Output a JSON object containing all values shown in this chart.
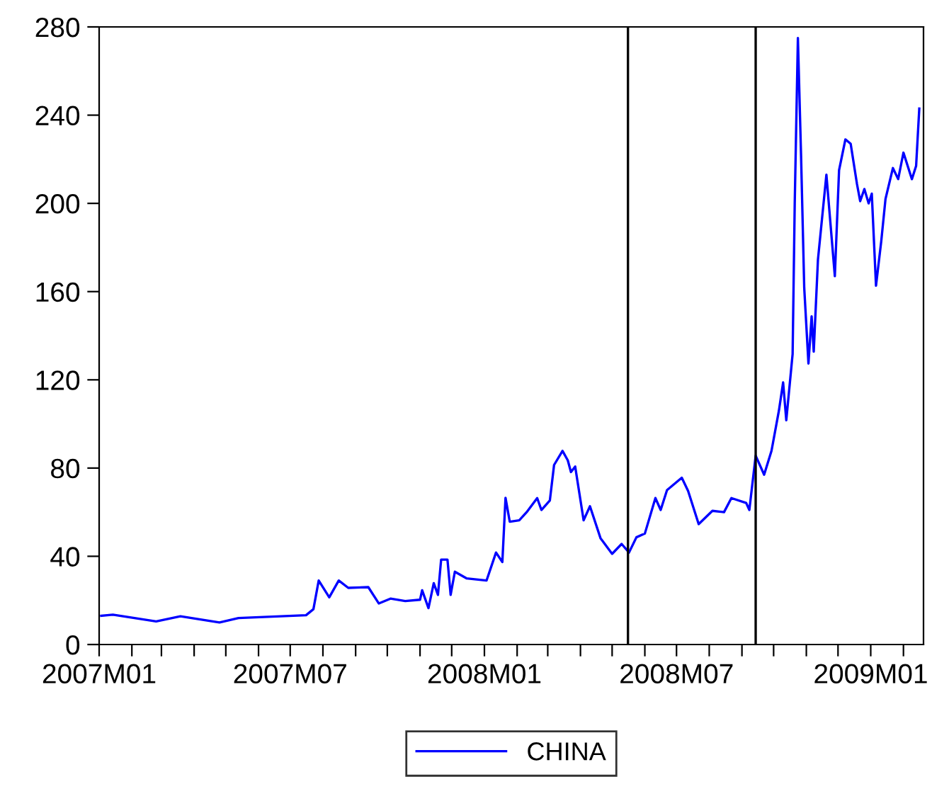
{
  "chart_data": {
    "type": "line",
    "x": [
      "2007-01-03",
      "2007-01-14",
      "2007-02-24",
      "2007-03-19",
      "2007-04-25",
      "2007-05-13",
      "2007-07-16",
      "2007-07-23",
      "2007-07-28",
      "2007-08-07",
      "2007-08-16",
      "2007-08-25",
      "2007-09-13",
      "2007-09-23",
      "2007-10-04",
      "2007-10-18",
      "2007-11-01",
      "2007-11-03",
      "2007-11-09",
      "2007-11-14",
      "2007-11-18",
      "2007-11-21",
      "2007-11-27",
      "2007-11-30",
      "2007-12-04",
      "2007-12-15",
      "2008-01-03",
      "2008-01-12",
      "2008-01-18",
      "2008-01-21",
      "2008-01-25",
      "2008-02-03",
      "2008-02-10",
      "2008-02-20",
      "2008-02-24",
      "2008-03-03",
      "2008-03-07",
      "2008-03-15",
      "2008-03-20",
      "2008-03-23",
      "2008-03-27",
      "2008-04-04",
      "2008-04-10",
      "2008-04-20",
      "2008-05-01",
      "2008-05-10",
      "2008-05-17",
      "2008-05-24",
      "2008-06-01",
      "2008-06-11",
      "2008-06-16",
      "2008-06-22",
      "2008-07-06",
      "2008-07-12",
      "2008-07-22",
      "2008-08-04",
      "2008-08-15",
      "2008-08-22",
      "2008-09-05",
      "2008-09-08",
      "2008-09-14",
      "2008-09-22",
      "2008-09-29",
      "2008-10-06",
      "2008-10-10",
      "2008-10-13",
      "2008-10-19",
      "2008-10-21",
      "2008-10-24",
      "2008-10-27",
      "2008-10-30",
      "2008-11-03",
      "2008-11-06",
      "2008-11-08",
      "2008-11-12",
      "2008-11-20",
      "2008-11-28",
      "2008-12-02",
      "2008-12-08",
      "2008-12-13",
      "2008-12-19",
      "2008-12-22",
      "2008-12-26",
      "2008-12-30",
      "2009-01-02",
      "2009-01-06",
      "2009-01-11",
      "2009-01-15",
      "2009-01-22",
      "2009-01-27",
      "2009-02-01",
      "2009-02-09",
      "2009-02-13",
      "2009-02-16"
    ],
    "series": [
      {
        "name": "CHINA",
        "color": "#0000ff",
        "values": [
          13,
          13.5,
          10.5,
          12.8,
          10,
          12,
          13.3,
          16,
          29,
          21.4,
          29,
          25.7,
          26,
          18.6,
          20.8,
          19.7,
          20.3,
          24.6,
          16.5,
          27.8,
          22.5,
          38.5,
          38.5,
          22.5,
          33,
          30,
          29,
          41.7,
          37.4,
          66.5,
          55.7,
          56.3,
          60,
          66.4,
          61,
          65.3,
          81.4,
          87.8,
          83.5,
          78.2,
          80.7,
          56.3,
          62.7,
          48.2,
          41.1,
          45.6,
          41.7,
          48.6,
          50.3,
          66.4,
          61,
          70,
          75.6,
          69.6,
          54.6,
          60.6,
          60,
          66.4,
          64.2,
          61,
          85.6,
          77,
          87.8,
          106,
          118.8,
          101.7,
          131.7,
          200,
          275,
          221.6,
          161.7,
          127.4,
          148.8,
          132.8,
          174.5,
          213,
          167,
          215,
          229,
          227,
          208.7,
          201,
          206.5,
          200,
          204.4,
          162.7,
          183,
          202,
          216,
          211,
          223,
          211,
          217,
          243
        ]
      }
    ],
    "xlim": [
      "2007-01-01",
      "2009-02-20"
    ],
    "xticks": [
      {
        "value": "2007-01-01",
        "label": "2007M01"
      },
      {
        "value": "2007-02-01",
        "label": null
      },
      {
        "value": "2007-03-01",
        "label": null
      },
      {
        "value": "2007-04-01",
        "label": null
      },
      {
        "value": "2007-05-01",
        "label": null
      },
      {
        "value": "2007-06-01",
        "label": null
      },
      {
        "value": "2007-07-01",
        "label": "2007M07"
      },
      {
        "value": "2007-08-01",
        "label": null
      },
      {
        "value": "2007-09-01",
        "label": null
      },
      {
        "value": "2007-10-01",
        "label": null
      },
      {
        "value": "2007-11-01",
        "label": null
      },
      {
        "value": "2007-12-01",
        "label": null
      },
      {
        "value": "2008-01-01",
        "label": "2008M01"
      },
      {
        "value": "2008-02-01",
        "label": null
      },
      {
        "value": "2008-03-01",
        "label": null
      },
      {
        "value": "2008-04-01",
        "label": null
      },
      {
        "value": "2008-05-01",
        "label": null
      },
      {
        "value": "2008-06-01",
        "label": null
      },
      {
        "value": "2008-07-01",
        "label": "2008M07"
      },
      {
        "value": "2008-08-01",
        "label": null
      },
      {
        "value": "2008-09-01",
        "label": null
      },
      {
        "value": "2008-10-01",
        "label": null
      },
      {
        "value": "2008-11-01",
        "label": null
      },
      {
        "value": "2008-12-01",
        "label": null
      },
      {
        "value": "2009-01-01",
        "label": "2009M01"
      },
      {
        "value": "2009-02-01",
        "label": null
      }
    ],
    "ylim": [
      0,
      280
    ],
    "yticks": [
      0,
      40,
      80,
      120,
      160,
      200,
      240,
      280
    ],
    "ref_lines": [
      {
        "axis": "x",
        "value": "2008-05-16",
        "color": "#000000"
      },
      {
        "axis": "x",
        "value": "2008-09-14",
        "color": "#000000"
      }
    ],
    "grid": false,
    "legend": "bottom"
  }
}
